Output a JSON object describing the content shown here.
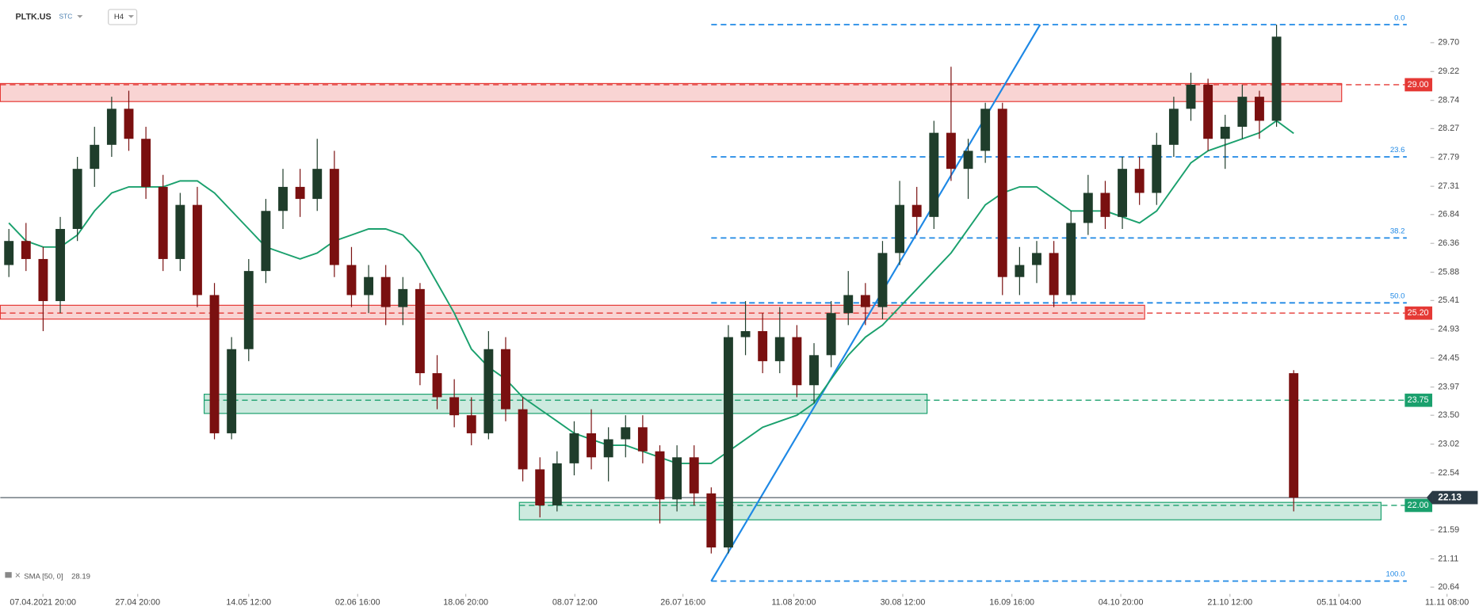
{
  "chart_data": {
    "type": "candlestick",
    "symbol": "PLTK.US",
    "market": "STC",
    "interval": "H4",
    "up_color": "#1f3d2b",
    "down_color": "#7a1010",
    "ohlc": [
      [
        26.0,
        26.6,
        25.8,
        26.4
      ],
      [
        26.4,
        26.7,
        25.9,
        26.1
      ],
      [
        26.1,
        26.3,
        24.9,
        25.4
      ],
      [
        25.4,
        26.8,
        25.2,
        26.6
      ],
      [
        26.6,
        27.8,
        26.4,
        27.6
      ],
      [
        27.6,
        28.3,
        27.3,
        28.0
      ],
      [
        28.0,
        28.8,
        27.8,
        28.6
      ],
      [
        28.6,
        28.9,
        27.9,
        28.1
      ],
      [
        28.1,
        28.3,
        27.1,
        27.3
      ],
      [
        27.3,
        27.5,
        25.9,
        26.1
      ],
      [
        26.1,
        27.2,
        25.9,
        27.0
      ],
      [
        27.0,
        27.3,
        25.3,
        25.5
      ],
      [
        25.5,
        25.7,
        23.1,
        23.2
      ],
      [
        23.2,
        24.8,
        23.1,
        24.6
      ],
      [
        24.6,
        26.1,
        24.4,
        25.9
      ],
      [
        25.9,
        27.1,
        25.7,
        26.9
      ],
      [
        26.9,
        27.6,
        26.6,
        27.3
      ],
      [
        27.3,
        27.6,
        26.8,
        27.1
      ],
      [
        27.1,
        28.1,
        26.9,
        27.6
      ],
      [
        27.6,
        27.9,
        25.8,
        26.0
      ],
      [
        26.0,
        26.3,
        25.3,
        25.5
      ],
      [
        25.5,
        26.0,
        25.2,
        25.8
      ],
      [
        25.8,
        26.0,
        25.0,
        25.3
      ],
      [
        25.3,
        25.8,
        25.0,
        25.6
      ],
      [
        25.6,
        25.7,
        24.0,
        24.2
      ],
      [
        24.2,
        24.5,
        23.6,
        23.8
      ],
      [
        23.8,
        24.1,
        23.3,
        23.5
      ],
      [
        23.5,
        23.8,
        23.0,
        23.2
      ],
      [
        23.2,
        24.9,
        23.1,
        24.6
      ],
      [
        24.6,
        24.8,
        23.4,
        23.6
      ],
      [
        23.6,
        23.8,
        22.4,
        22.6
      ],
      [
        22.6,
        22.8,
        21.8,
        22.0
      ],
      [
        22.0,
        22.9,
        21.9,
        22.7
      ],
      [
        22.7,
        23.4,
        22.5,
        23.2
      ],
      [
        23.2,
        23.6,
        22.6,
        22.8
      ],
      [
        22.8,
        23.3,
        22.4,
        23.1
      ],
      [
        23.1,
        23.5,
        22.8,
        23.3
      ],
      [
        23.3,
        23.5,
        22.7,
        22.9
      ],
      [
        22.9,
        23.0,
        21.7,
        22.1
      ],
      [
        22.1,
        23.0,
        21.9,
        22.8
      ],
      [
        22.8,
        23.0,
        22.0,
        22.2
      ],
      [
        22.2,
        22.3,
        21.2,
        21.3
      ],
      [
        21.3,
        25.0,
        21.2,
        24.8
      ],
      [
        24.8,
        25.4,
        24.5,
        24.9
      ],
      [
        24.9,
        25.2,
        24.2,
        24.4
      ],
      [
        24.4,
        25.3,
        24.2,
        24.8
      ],
      [
        24.8,
        25.0,
        23.8,
        24.0
      ],
      [
        24.0,
        24.7,
        23.7,
        24.5
      ],
      [
        24.5,
        25.4,
        24.3,
        25.2
      ],
      [
        25.2,
        25.9,
        25.0,
        25.5
      ],
      [
        25.5,
        25.7,
        25.0,
        25.3
      ],
      [
        25.3,
        26.4,
        25.1,
        26.2
      ],
      [
        26.2,
        27.4,
        26.0,
        27.0
      ],
      [
        27.0,
        27.3,
        26.5,
        26.8
      ],
      [
        26.8,
        28.4,
        26.6,
        28.2
      ],
      [
        28.2,
        29.3,
        27.4,
        27.6
      ],
      [
        27.6,
        28.1,
        27.1,
        27.9
      ],
      [
        27.9,
        28.7,
        27.7,
        28.6
      ],
      [
        28.6,
        28.7,
        25.5,
        25.8
      ],
      [
        25.8,
        26.3,
        25.5,
        26.0
      ],
      [
        26.0,
        26.4,
        25.7,
        26.2
      ],
      [
        26.2,
        26.4,
        25.3,
        25.5
      ],
      [
        25.5,
        26.9,
        25.4,
        26.7
      ],
      [
        26.7,
        27.5,
        26.5,
        27.2
      ],
      [
        27.2,
        27.4,
        26.6,
        26.8
      ],
      [
        26.8,
        27.8,
        26.6,
        27.6
      ],
      [
        27.6,
        27.8,
        27.0,
        27.2
      ],
      [
        27.2,
        28.2,
        27.0,
        28.0
      ],
      [
        28.0,
        28.8,
        27.8,
        28.6
      ],
      [
        28.6,
        29.2,
        28.4,
        29.0
      ],
      [
        29.0,
        29.1,
        27.9,
        28.1
      ],
      [
        28.1,
        28.5,
        27.6,
        28.3
      ],
      [
        28.3,
        29.0,
        28.1,
        28.8
      ],
      [
        28.8,
        28.9,
        28.1,
        28.4
      ],
      [
        28.4,
        30.0,
        28.3,
        29.8
      ],
      [
        24.2,
        24.25,
        21.9,
        22.13
      ]
    ],
    "sma": {
      "name": "SMA [50, 0]",
      "color": "#1aa06d",
      "values": [
        26.7,
        26.4,
        26.3,
        26.3,
        26.5,
        26.9,
        27.2,
        27.3,
        27.3,
        27.3,
        27.4,
        27.4,
        27.2,
        26.9,
        26.6,
        26.3,
        26.2,
        26.1,
        26.2,
        26.4,
        26.5,
        26.6,
        26.6,
        26.5,
        26.2,
        25.7,
        25.2,
        24.6,
        24.3,
        24.1,
        23.8,
        23.6,
        23.4,
        23.2,
        23.1,
        23.0,
        23.0,
        22.9,
        22.8,
        22.7,
        22.7,
        22.7,
        22.9,
        23.1,
        23.3,
        23.4,
        23.5,
        23.7,
        24.1,
        24.5,
        24.8,
        25.0,
        25.3,
        25.6,
        25.9,
        26.2,
        26.6,
        27.0,
        27.2,
        27.3,
        27.3,
        27.1,
        26.9,
        26.9,
        26.9,
        26.8,
        26.7,
        26.9,
        27.3,
        27.7,
        27.9,
        28.0,
        28.1,
        28.2,
        28.4,
        28.19
      ]
    },
    "last_price": 22.13,
    "zones": [
      {
        "color": "#e53935",
        "band": [
          28.72,
          29.02
        ],
        "x_range": [
          -0.5,
          77.8
        ],
        "level": {
          "value": 29,
          "label": "29.00"
        }
      },
      {
        "color": "#e53935",
        "band": [
          25.1,
          25.33
        ],
        "x_range": [
          -0.5,
          66.3
        ],
        "level": {
          "value": 25.2,
          "label": "25.20"
        }
      },
      {
        "color": "#1aa06d",
        "band": [
          23.53,
          23.85
        ],
        "x_range": [
          11.4,
          53.6
        ],
        "level": 23.75
      },
      {
        "color": "#1aa06d",
        "band": [
          21.76,
          22.05
        ],
        "x_range": [
          29.8,
          80.1
        ],
        "level": {
          "value": 22,
          "label": "22.00"
        }
      }
    ],
    "fib_color": "#1e88e5",
    "fib_x_range": [
      41.0,
      81.6
    ],
    "fib_levels": [
      {
        "label": "0.0",
        "price": 30.0
      },
      {
        "label": "23.6",
        "price": 27.8
      },
      {
        "label": "38.2",
        "price": 26.45
      },
      {
        "label": "50.0",
        "price": 25.37
      },
      {
        "label": "100.0",
        "price": 20.74
      }
    ],
    "trendline": {
      "x": [
        41.0,
        60.2
      ],
      "y": [
        20.74,
        30.0
      ]
    },
    "xlim": [
      -0.5,
      85.8
    ],
    "ylim": [
      20.48,
      30.41
    ],
    "xticks": [
      {
        "value": 1.99,
        "label": "07.04.2021 20:00"
      },
      {
        "value": 7.52,
        "label": "27.04 20:00"
      },
      {
        "value": 14.0,
        "label": "14.05 12:00"
      },
      {
        "value": 20.36,
        "label": "02.06 16:00"
      },
      {
        "value": 26.67,
        "label": "18.06 20:00"
      },
      {
        "value": 33.04,
        "label": "08.07 12:00"
      },
      {
        "value": 39.35,
        "label": "26.07 16:00"
      },
      {
        "value": 45.82,
        "label": "11.08 20:00"
      },
      {
        "value": 52.18,
        "label": "30.08 12:00"
      },
      {
        "value": 58.55,
        "label": "16.09 16:00"
      },
      {
        "value": 64.91,
        "label": "04.10 20:00"
      },
      {
        "value": 71.28,
        "label": "21.10 12:00"
      },
      {
        "value": 77.64,
        "label": "05.11 04:00"
      },
      {
        "value": 83.95,
        "label": "11.11 08:00"
      }
    ],
    "yticks": [
      {
        "value": 29.7,
        "label": "29.70"
      },
      29.22,
      28.74,
      28.27,
      27.79,
      27.31,
      26.84,
      26.36,
      25.88,
      25.41,
      24.93,
      24.45,
      23.97,
      {
        "value": 23.5,
        "label": "23.50"
      },
      23.02,
      22.54,
      21.59,
      21.11,
      20.64
    ]
  }
}
